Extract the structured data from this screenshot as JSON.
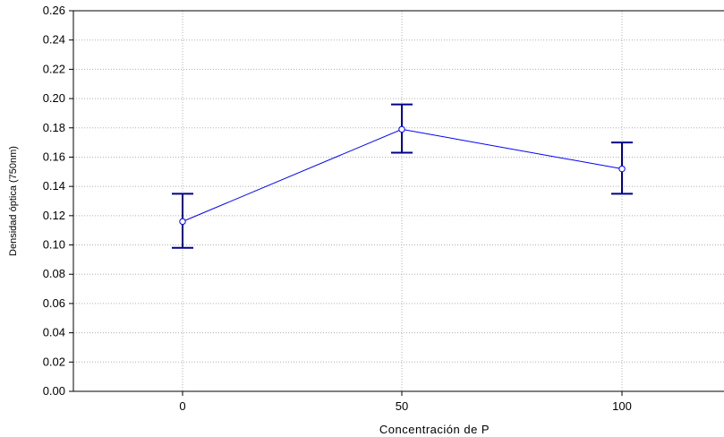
{
  "chart_data": {
    "type": "line",
    "title": "",
    "xlabel": "Concentración de P",
    "ylabel": "Densidad óptica (750nm)",
    "categories": [
      "0",
      "50",
      "100"
    ],
    "series": [
      {
        "values": [
          0.116,
          0.179,
          0.152
        ],
        "error_low": [
          0.098,
          0.163,
          0.135
        ],
        "error_high": [
          0.135,
          0.196,
          0.17
        ]
      }
    ],
    "ylim": [
      0,
      0.26
    ],
    "yticks": [
      "0.00",
      "0.02",
      "0.04",
      "0.06",
      "0.08",
      "0.10",
      "0.12",
      "0.14",
      "0.16",
      "0.18",
      "0.20",
      "0.22",
      "0.24",
      "0.26"
    ],
    "grid": true,
    "colors": {
      "series": "#0000ff",
      "errorbar": "#00008b",
      "grid": "#b0b0b0"
    }
  }
}
